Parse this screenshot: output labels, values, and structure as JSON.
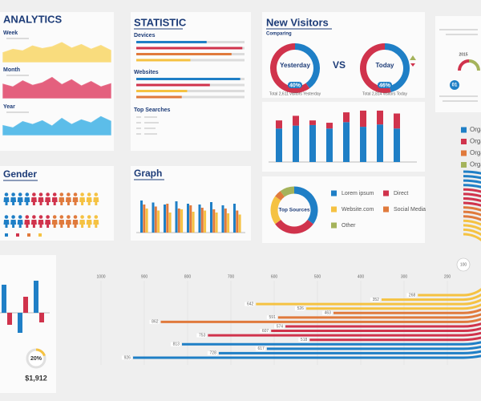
{
  "analytics": {
    "title": "ANALYTICS",
    "charts": [
      {
        "type": "area",
        "label": "Week",
        "color": "#f9dc7d",
        "values": [
          40,
          55,
          48,
          70,
          58,
          66,
          85,
          60,
          76,
          55,
          72,
          50
        ]
      },
      {
        "type": "area",
        "label": "Month",
        "color": "#e4607e",
        "values": [
          60,
          48,
          75,
          55,
          66,
          90,
          58,
          80,
          52,
          72,
          48,
          62
        ]
      },
      {
        "type": "area",
        "label": "Year",
        "color": "#5cbde9",
        "values": [
          40,
          30,
          58,
          45,
          62,
          38,
          72,
          45,
          66,
          52,
          80,
          60
        ]
      }
    ]
  },
  "statistic": {
    "title": "STATISTIC",
    "groups": [
      {
        "label": "Devices",
        "values": [
          65,
          98,
          88,
          50
        ],
        "colors": [
          "#1f7fc6",
          "#d0334c",
          "#e07a3c",
          "#f5c242"
        ]
      },
      {
        "label": "Websites",
        "values": [
          96,
          68,
          47,
          42
        ],
        "colors": [
          "#1f7fc6",
          "#d0334c",
          "#f5c242",
          "#e07a3c"
        ]
      }
    ],
    "top_searches": "Top Searches"
  },
  "new_visitors": {
    "title": "New Visitors",
    "subtitle": "Comparing",
    "vs": "VS",
    "colors": [
      "#1f7fc6",
      "#d0334c"
    ],
    "donuts": [
      {
        "label": "Yesterday",
        "value": 40,
        "value_label": "40%",
        "caption": "Total 2,611 visitors Yesterday"
      },
      {
        "label": "Today",
        "value": 46,
        "value_label": "46%",
        "caption": "Total 2,814 visitors Today"
      }
    ]
  },
  "visits_bars": {
    "type": "stacked_bar",
    "series": [
      {
        "color": "#1f7fc6",
        "values": [
          58,
          63,
          64,
          58,
          69,
          61,
          65,
          58
        ]
      },
      {
        "color": "#d0334c",
        "values": [
          14,
          17,
          8,
          10,
          17,
          28,
          24,
          26
        ]
      }
    ]
  },
  "top_sources": {
    "type": "donut",
    "title": "Top Sources",
    "categories": [
      "Lorem ipsum",
      "Direct",
      "Website.com",
      "Social Media",
      "Other"
    ],
    "values": [
      35,
      30,
      20,
      5,
      10
    ],
    "colors": [
      "#1f7fc6",
      "#d0334c",
      "#f5c242",
      "#e07a3c",
      "#a5b35b"
    ]
  },
  "gender": {
    "title": "Gender",
    "rows": [
      {
        "counts": [
          4,
          4,
          3,
          3
        ]
      },
      {
        "counts": [
          3,
          4,
          4,
          3
        ]
      }
    ],
    "colors": [
      "#1f7fc6",
      "#d0334c",
      "#e07a3c",
      "#f5c242"
    ]
  },
  "graph": {
    "type": "grouped_bar",
    "title": "Graph",
    "series": [
      {
        "color": "#1f7fc6",
        "values": [
          80,
          75,
          70,
          78,
          72,
          70,
          76,
          68,
          72
        ]
      },
      {
        "color": "#e07a3c",
        "values": [
          70,
          65,
          72,
          60,
          68,
          62,
          58,
          60,
          55
        ]
      },
      {
        "color": "#f5c242",
        "values": [
          60,
          55,
          50,
          58,
          52,
          55,
          50,
          48,
          45
        ]
      }
    ]
  },
  "mini_bars": {
    "type": "bar",
    "series": [
      {
        "color": "#1f7fc6",
        "values": [
          35,
          -25,
          40
        ]
      },
      {
        "color": "#d0334c",
        "values": [
          -15,
          20,
          -12
        ]
      }
    ]
  },
  "percent": {
    "value": 20,
    "value_label": "20%",
    "color": "#f5c242",
    "amount": "$1,912"
  },
  "timeline": {
    "year": "2015",
    "step": "01"
  },
  "legend_right": {
    "labels": [
      "Orga",
      "Orga",
      "Orga",
      "Orga"
    ],
    "colors": [
      "#1f7fc6",
      "#d0334c",
      "#e07a3c",
      "#a5b35b"
    ]
  },
  "radial_bars": {
    "type": "hbar",
    "values": [
      268,
      352,
      642,
      526,
      463,
      591,
      862,
      574,
      607,
      753,
      518,
      813,
      617,
      728,
      926
    ],
    "colors": [
      "#f5c242",
      "#f5c242",
      "#f5c242",
      "#f5c242",
      "#e07a3c",
      "#e07a3c",
      "#e07a3c",
      "#d0334c",
      "#d0334c",
      "#d0334c",
      "#d0334c",
      "#1f7fc6",
      "#1f7fc6",
      "#1f7fc6",
      "#1f7fc6"
    ],
    "xlim": [
      200,
      1000
    ],
    "xticks": [
      1000,
      900,
      800,
      700,
      600,
      500,
      400,
      300,
      200
    ],
    "center_label": 100
  }
}
